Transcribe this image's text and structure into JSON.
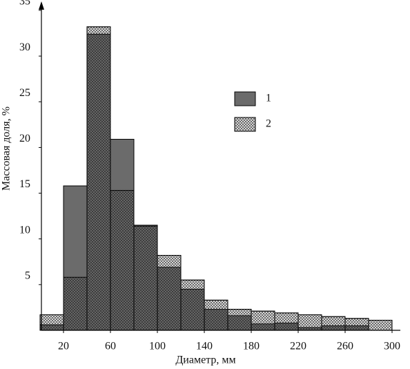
{
  "chart_data": {
    "type": "histogram",
    "x_label": "Диаметр, мм",
    "y_label": "Массовая доля, %",
    "bins": [
      0,
      20,
      40,
      60,
      80,
      100,
      120,
      140,
      160,
      180,
      200,
      220,
      240,
      260,
      280,
      300
    ],
    "series": [
      {
        "name": "1",
        "color": "#6b6b6b",
        "values": [
          0.6,
          15.8,
          32.4,
          20.9,
          11.5,
          6.9,
          4.5,
          2.3,
          1.6,
          0.7,
          0.8,
          0.3,
          0.5,
          0.5,
          0
        ]
      },
      {
        "name": "2",
        "color": "#e6e6e6",
        "values": [
          1.7,
          5.8,
          33.2,
          15.3,
          11.4,
          8.2,
          5.5,
          3.3,
          2.3,
          2.1,
          1.9,
          1.7,
          1.5,
          1.3,
          1.1
        ]
      }
    ],
    "xlim": [
      0,
      310
    ],
    "ylim": [
      0,
      35
    ],
    "xticks": [
      20,
      60,
      100,
      140,
      180,
      220,
      260,
      300
    ],
    "yticks": [
      5,
      10,
      15,
      20,
      25,
      30,
      35
    ]
  }
}
